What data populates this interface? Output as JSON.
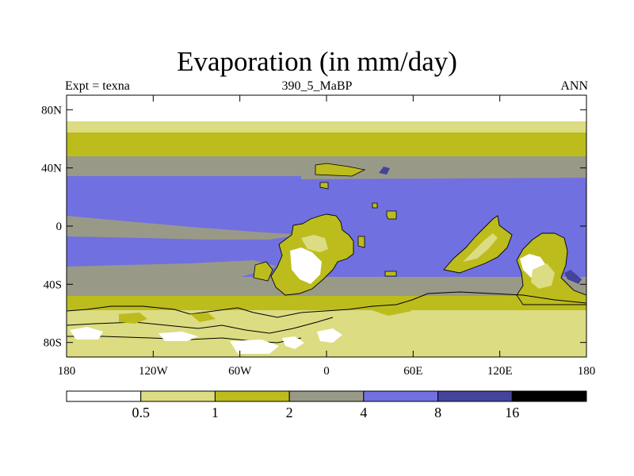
{
  "figure": {
    "title": "Evaporation (in mm/day)",
    "left_label": "Expt = texna",
    "center_label": "390_5_MaBP",
    "right_label": "ANN"
  },
  "axes": {
    "x_range": [
      -180,
      180
    ],
    "y_range": [
      -90,
      90
    ],
    "x_ticks": [
      {
        "value": -180,
        "label": "180"
      },
      {
        "value": -120,
        "label": "120W"
      },
      {
        "value": -60,
        "label": "60W"
      },
      {
        "value": 0,
        "label": "0"
      },
      {
        "value": 60,
        "label": "60E"
      },
      {
        "value": 120,
        "label": "120E"
      },
      {
        "value": 180,
        "label": "180"
      }
    ],
    "y_ticks": [
      {
        "value": 80,
        "label": "80N"
      },
      {
        "value": 40,
        "label": "40N"
      },
      {
        "value": 0,
        "label": "0"
      },
      {
        "value": -40,
        "label": "40S"
      },
      {
        "value": -80,
        "label": "80S"
      }
    ]
  },
  "colorbar": {
    "levels": [
      "0.5",
      "1",
      "2",
      "4",
      "8",
      "16"
    ],
    "colors": [
      "#ffffff",
      "#dcdc82",
      "#bcbc1c",
      "#999988",
      "#7070e0",
      "#44449a",
      "#000000"
    ]
  },
  "chart_data": {
    "type": "contour-map",
    "title": "Evaporation (in mm/day)",
    "variable": "Evaporation",
    "units": "mm/day",
    "experiment": "texna",
    "period_label": "390_5_MaBP",
    "season": "ANN",
    "contour_levels": [
      0.5,
      1,
      2,
      4,
      8,
      16
    ],
    "x_range": [
      -180,
      180
    ],
    "y_range": [
      -90,
      90
    ],
    "zonal_bands": [
      {
        "lat_from": 90,
        "lat_to": 72,
        "class": "<0.5"
      },
      {
        "lat_from": 72,
        "lat_to": 66,
        "class": "0.5-1"
      },
      {
        "lat_from": 66,
        "lat_to": 50,
        "class": "1-2"
      },
      {
        "lat_from": 50,
        "lat_to": 35,
        "class": "2-4"
      },
      {
        "lat_from": 35,
        "lat_to": -36,
        "class": "4-8"
      },
      {
        "lat_from": -36,
        "lat_to": -50,
        "class": "2-4"
      },
      {
        "lat_from": -50,
        "lat_to": -62,
        "class": "1-2"
      },
      {
        "lat_from": -62,
        "lat_to": -90,
        "class": "0.5-1"
      }
    ]
  }
}
